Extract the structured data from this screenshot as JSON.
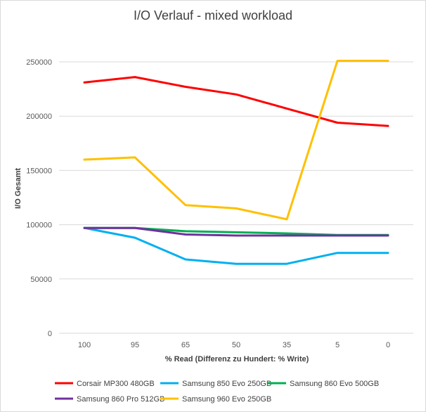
{
  "chart_data": {
    "type": "line",
    "title": "I/O Verlauf - mixed workload",
    "xlabel": "% Read (Differenz zu Hundert: % Write)",
    "ylabel": "I/O Gesamt",
    "categories": [
      "100",
      "95",
      "65",
      "50",
      "35",
      "5",
      "0"
    ],
    "ylim": [
      0,
      250000
    ],
    "yticks": [
      0,
      50000,
      100000,
      150000,
      200000,
      250000
    ],
    "grid": true,
    "legend_position": "bottom",
    "series": [
      {
        "name": "Corsair MP300 480GB",
        "color": "#ff0000",
        "values": [
          231000,
          236000,
          227000,
          220000,
          207000,
          194000,
          191000
        ]
      },
      {
        "name": "Samsung 850 Evo 250GB",
        "color": "#00b0f0",
        "values": [
          97000,
          88000,
          68000,
          64000,
          64000,
          74000,
          74000
        ]
      },
      {
        "name": "Samsung 860 Evo 500GB",
        "color": "#00b050",
        "values": [
          97000,
          97000,
          94000,
          93000,
          92000,
          90500,
          90500
        ]
      },
      {
        "name": "Samsung 860 Pro 512GB",
        "color": "#7030a0",
        "values": [
          97000,
          97000,
          91000,
          90000,
          90000,
          90000,
          90000
        ]
      },
      {
        "name": "Samsung 960 Evo 250GB",
        "color": "#ffc000",
        "values": [
          160000,
          162000,
          118000,
          115000,
          105000,
          251000,
          251000
        ]
      }
    ]
  }
}
